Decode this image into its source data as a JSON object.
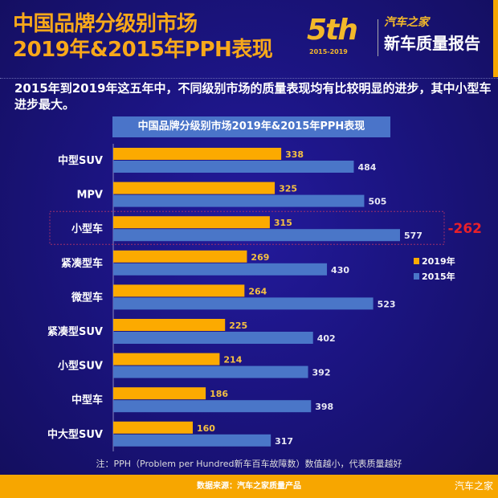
{
  "header": {
    "title_line1": "中国品牌分级别市场",
    "title_line2": "2019年&2015年PPH表现",
    "logo": {
      "number": "5th",
      "years": "2015-2019",
      "brand": "汽车之家",
      "report": "新车质量报告"
    }
  },
  "subtitle": "2015年到2019年这五年中，不同级别市场的质量表现均有比较明显的进步，其中小型车进步最大。",
  "chart_data": {
    "type": "bar",
    "orientation": "horizontal",
    "title": "中国品牌分级别市场2019年&2015年PPH表现",
    "categories": [
      "中型SUV",
      "MPV",
      "小型车",
      "紧凑型车",
      "微型车",
      "紧凑型SUV",
      "小型SUV",
      "中型车",
      "中大型SUV"
    ],
    "series": [
      {
        "name": "2019年",
        "color": "#fcaa00",
        "values": [
          338,
          325,
          315,
          269,
          264,
          225,
          214,
          186,
          160
        ]
      },
      {
        "name": "2015年",
        "color": "#4a76c8",
        "values": [
          484,
          505,
          577,
          430,
          523,
          402,
          392,
          398,
          317
        ]
      }
    ],
    "legend": "right",
    "highlight": {
      "category": "小型车",
      "annotation": "-262",
      "color": "#e8202a"
    },
    "xlim": [
      0,
      600
    ],
    "grid": false
  },
  "note": "注：PPH（Problem per Hundred新车百车故障数）数值越小，代表质量越好",
  "footer": {
    "source": "数据来源：汽车之家质量产品",
    "watermark": "汽车之家"
  }
}
